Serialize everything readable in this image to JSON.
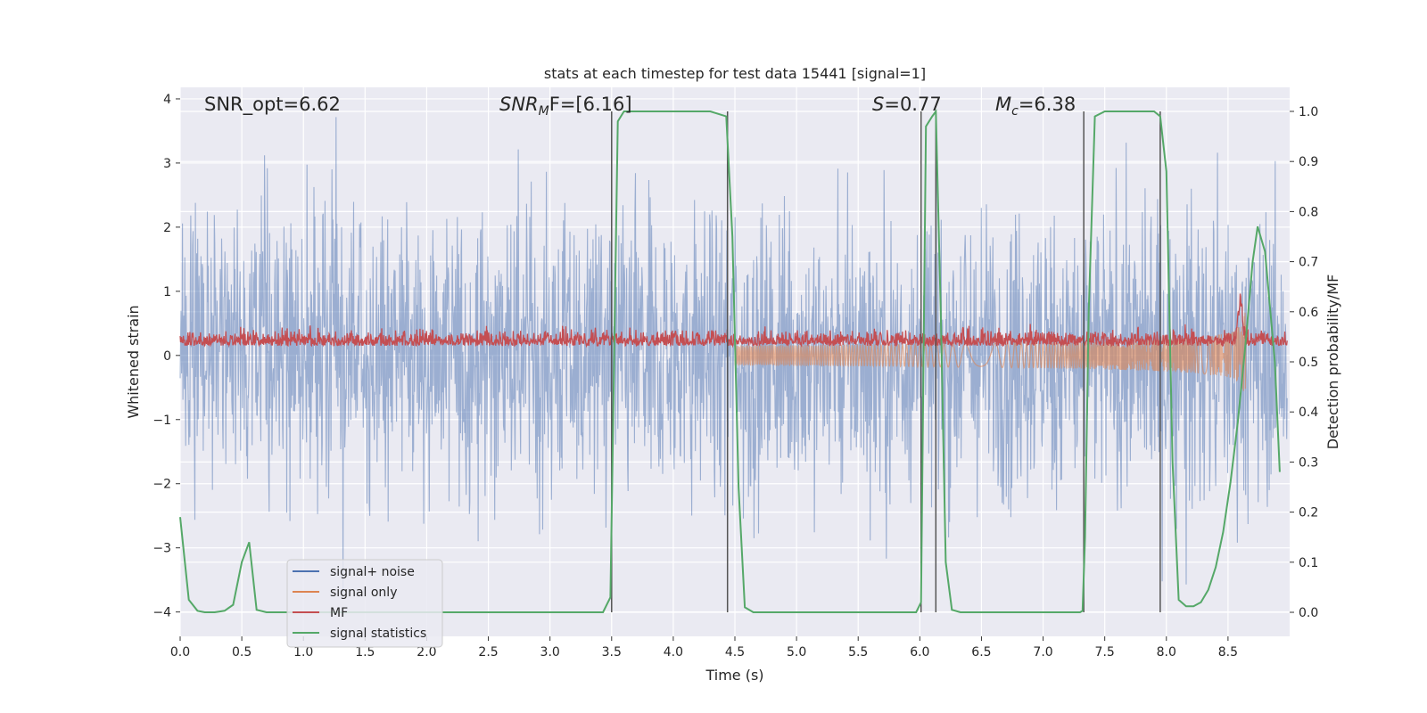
{
  "chart_data": {
    "type": "line",
    "title": "stats at each timestep for test data 15441 [signal=1]",
    "xlabel": "Time (s)",
    "ylabel_left": "Whitened strain",
    "ylabel_right": "Detection probability/MF",
    "xlim": [
      0.0,
      9.0
    ],
    "ylim_left": [
      -4.38,
      4.18
    ],
    "ylim_right": [
      -0.048,
      1.048
    ],
    "xticks": [
      0.0,
      0.5,
      1.0,
      1.5,
      2.0,
      2.5,
      3.0,
      3.5,
      4.0,
      4.5,
      5.0,
      5.5,
      6.0,
      6.5,
      7.0,
      7.5,
      8.0,
      8.5
    ],
    "xtick_labels": [
      "0.0",
      "0.5",
      "1.0",
      "1.5",
      "2.0",
      "2.5",
      "3.0",
      "3.5",
      "4.0",
      "4.5",
      "5.0",
      "5.5",
      "6.0",
      "6.5",
      "7.0",
      "7.5",
      "8.0",
      "8.5"
    ],
    "yticks_left": [
      -4,
      -3,
      -2,
      -1,
      0,
      1,
      2,
      3,
      4
    ],
    "ytick_labels_left": [
      "−4",
      "−3",
      "−2",
      "−1",
      "0",
      "1",
      "2",
      "3",
      "4"
    ],
    "yticks_right": [
      0.0,
      0.1,
      0.2,
      0.3,
      0.4,
      0.5,
      0.6,
      0.7,
      0.8,
      0.9,
      1.0
    ],
    "ytick_labels_right": [
      "0.0",
      "0.1",
      "0.2",
      "0.3",
      "0.4",
      "0.5",
      "0.6",
      "0.7",
      "0.8",
      "0.9",
      "1.0"
    ],
    "annotations": {
      "snr_opt": "SNR_opt=6.62",
      "snr_mf_main": "SNR",
      "snr_mf_sub": "M",
      "snr_mf_rest": "F=[6.16]",
      "s_main": "S",
      "s_rest": "=0.77",
      "mc_main": "M",
      "mc_sub": "c",
      "mc_rest": "=6.38"
    },
    "legend": {
      "placement": "lower-left",
      "entries": [
        "signal+ noise",
        "signal only",
        "MF",
        "signal statistics"
      ]
    },
    "colors": {
      "noise": "#4c72b0",
      "signal_only": "#dd8452",
      "mf": "#c44e52",
      "statistics": "#55a868",
      "vlines": "#555555",
      "background": "#eaeaf2",
      "grid": "#ffffff"
    },
    "series": [
      {
        "name": "signal+ noise",
        "axis": "left",
        "description_range": [
          -3.7,
          3.8
        ],
        "typical_amplitude": 1.6
      },
      {
        "name": "signal only",
        "axis": "left",
        "chirp_start": 4.5,
        "chirp_end": 8.65,
        "peak_amplitude": 0.9
      },
      {
        "name": "MF",
        "axis": "left",
        "baseline": 0.2,
        "typical_amplitude": 0.22,
        "peak_x": 8.6,
        "peak_value": 1.0
      },
      {
        "name": "signal statistics",
        "axis": "right",
        "x": [
          0.0,
          0.07,
          0.14,
          0.2,
          0.28,
          0.36,
          0.43,
          0.5,
          0.56,
          0.62,
          0.7,
          0.8,
          1.0,
          1.5,
          2.0,
          2.5,
          3.0,
          3.43,
          3.49,
          3.52,
          3.55,
          3.6,
          3.7,
          4.0,
          4.3,
          4.43,
          4.48,
          4.53,
          4.58,
          4.65,
          4.75,
          5.0,
          5.5,
          5.97,
          6.01,
          6.05,
          6.1,
          6.13,
          6.17,
          6.21,
          6.26,
          6.33,
          6.5,
          7.0,
          7.3,
          7.32,
          7.34,
          7.37,
          7.42,
          7.5,
          7.9,
          7.95,
          8.0,
          8.05,
          8.1,
          8.16,
          8.22,
          8.28,
          8.34,
          8.4,
          8.46,
          8.52,
          8.58,
          8.64,
          8.7,
          8.74,
          8.8,
          8.88,
          8.92
        ],
        "values": [
          0.19,
          0.025,
          0.003,
          0.0,
          0.0,
          0.003,
          0.015,
          0.1,
          0.14,
          0.005,
          0.0,
          0.0,
          0.0,
          0.0,
          0.0,
          0.0,
          0.0,
          0.0,
          0.03,
          0.5,
          0.98,
          1.0,
          1.0,
          1.0,
          1.0,
          0.99,
          0.75,
          0.25,
          0.01,
          0.0,
          0.0,
          0.0,
          0.0,
          0.0,
          0.02,
          0.97,
          0.99,
          1.0,
          0.6,
          0.1,
          0.005,
          0.0,
          0.0,
          0.0,
          0.0,
          0.003,
          0.15,
          0.6,
          0.99,
          1.0,
          1.0,
          0.99,
          0.88,
          0.3,
          0.025,
          0.012,
          0.012,
          0.02,
          0.045,
          0.09,
          0.16,
          0.26,
          0.38,
          0.53,
          0.7,
          0.77,
          0.72,
          0.5,
          0.28
        ]
      }
    ],
    "vlines": [
      3.5,
      4.44,
      6.01,
      6.13,
      7.33,
      7.95
    ]
  }
}
